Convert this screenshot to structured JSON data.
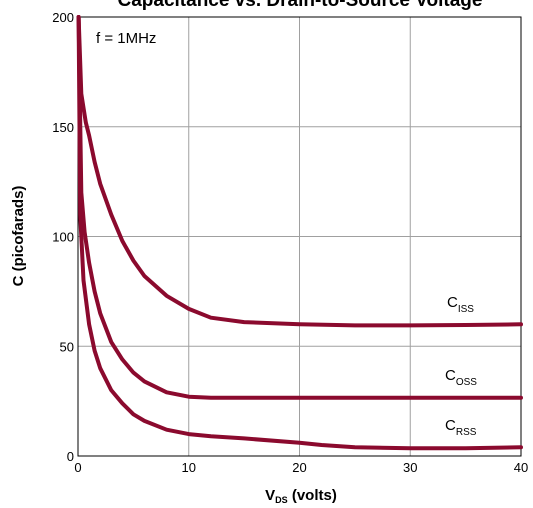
{
  "chart_data": {
    "type": "line",
    "title": "Capacitance vs. Drain-to-Source Voltage",
    "xlabel": "V",
    "xlabel_sub": "DS",
    "xlabel_suffix": " (volts)",
    "ylabel": "C (picofarads)",
    "annotation": "f = 1MHz",
    "xlim": [
      0,
      40
    ],
    "ylim": [
      0,
      200
    ],
    "x_ticks": [
      "0",
      "10",
      "20",
      "30",
      "40"
    ],
    "y_ticks": [
      "0",
      "50",
      "100",
      "150",
      "200"
    ],
    "grid": true,
    "line_color": "#8b0a2e",
    "series": [
      {
        "name": "C",
        "sub": "ISS",
        "x": [
          0.05,
          0.3,
          0.7,
          1,
          1.5,
          2,
          3,
          4,
          5,
          6,
          8,
          10,
          12,
          15,
          20,
          25,
          30,
          35,
          40
        ],
        "y": [
          200,
          165,
          152,
          146,
          134,
          124,
          110,
          98,
          89,
          82,
          73,
          67,
          63,
          61,
          60,
          59.5,
          59.5,
          59.7,
          60
        ]
      },
      {
        "name": "C",
        "sub": "OSS",
        "x": [
          0.05,
          0.3,
          0.6,
          1,
          1.5,
          2,
          3,
          4,
          5,
          6,
          8,
          10,
          12,
          15,
          20,
          25,
          30,
          35,
          40
        ],
        "y": [
          200,
          120,
          102,
          88,
          75,
          65,
          52,
          44,
          38,
          34,
          29,
          27,
          26.5,
          26.5,
          26.5,
          26.5,
          26.5,
          26.5,
          26.5
        ]
      },
      {
        "name": "C",
        "sub": "RSS",
        "x": [
          0.05,
          0.2,
          0.5,
          1,
          1.5,
          2,
          3,
          4,
          5,
          6,
          8,
          10,
          12,
          15,
          20,
          22,
          25,
          30,
          35,
          40
        ],
        "y": [
          200,
          110,
          80,
          60,
          48,
          40,
          30,
          24,
          19,
          16,
          12,
          10,
          9,
          8,
          6,
          5,
          4,
          3.5,
          3.5,
          4
        ]
      }
    ]
  }
}
